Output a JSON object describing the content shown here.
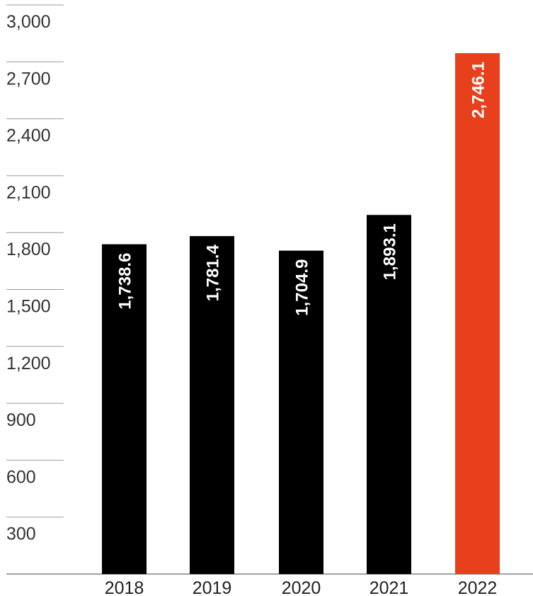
{
  "chart_data": {
    "type": "bar",
    "categories": [
      "2018",
      "2019",
      "2020",
      "2021",
      "2022"
    ],
    "values": [
      1738.6,
      1781.4,
      1704.9,
      1893.1,
      2746.1
    ],
    "value_labels": [
      "1,738.6",
      "1,781.4",
      "1,704.9",
      "1,893.1",
      "2,746.1"
    ],
    "y_ticks": [
      300,
      600,
      900,
      1200,
      1500,
      1800,
      2100,
      2400,
      2700,
      3000
    ],
    "y_tick_labels": [
      "300",
      "600",
      "900",
      "1,200",
      "1,500",
      "1,800",
      "2,100",
      "2,400",
      "2,700",
      "3,000"
    ],
    "ylim": [
      0,
      3000
    ],
    "title": "",
    "xlabel": "",
    "ylabel": "",
    "grid": "left tick lines only",
    "colors": {
      "default_bar": "#000000",
      "highlight_bar": "#e8401c",
      "gridline": "#999999",
      "axis": "#444444"
    },
    "highlight_index": 4
  }
}
